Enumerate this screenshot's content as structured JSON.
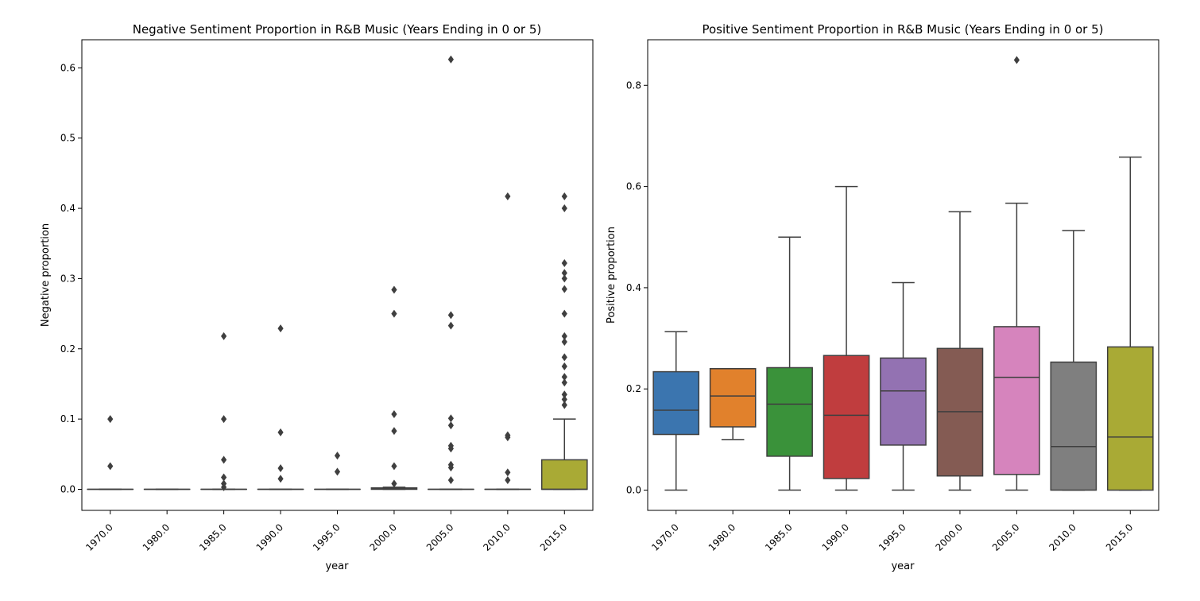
{
  "charts": [
    {
      "type": "box",
      "title": "Negative Sentiment Proportion in R&B Music (Years Ending in 0 or 5)",
      "xlabel": "year",
      "ylabel": "Negative proportion",
      "ylim": [
        -0.03,
        0.64
      ],
      "yticks": [
        0.0,
        0.1,
        0.2,
        0.3,
        0.4,
        0.5,
        0.6
      ],
      "yticklabels": [
        "0.0",
        "0.1",
        "0.2",
        "0.3",
        "0.4",
        "0.5",
        "0.6"
      ],
      "categories": [
        "1970.0",
        "1980.0",
        "1985.0",
        "1990.0",
        "1995.0",
        "2000.0",
        "2005.0",
        "2010.0",
        "2015.0"
      ],
      "boxes": [
        {
          "q1": 0.0,
          "median": 0.0,
          "q3": 0.0,
          "whislo": 0.0,
          "whishi": 0.0,
          "fliers": [
            0.1,
            0.033
          ]
        },
        {
          "q1": 0.0,
          "median": 0.0,
          "q3": 0.0,
          "whislo": 0.0,
          "whishi": 0.0,
          "fliers": []
        },
        {
          "q1": 0.0,
          "median": 0.0,
          "q3": 0.0,
          "whislo": 0.0,
          "whishi": 0.0,
          "fliers": [
            0.218,
            0.1,
            0.042,
            0.017,
            0.008,
            0.003
          ]
        },
        {
          "q1": 0.0,
          "median": 0.0,
          "q3": 0.0,
          "whislo": 0.0,
          "whishi": 0.0,
          "fliers": [
            0.229,
            0.081,
            0.03,
            0.015
          ]
        },
        {
          "q1": 0.0,
          "median": 0.0,
          "q3": 0.0,
          "whislo": 0.0,
          "whishi": 0.0,
          "fliers": [
            0.048,
            0.025
          ]
        },
        {
          "q1": 0.0,
          "median": 0.001,
          "q3": 0.002,
          "whislo": 0.0,
          "whishi": 0.003,
          "fliers": [
            0.284,
            0.25,
            0.107,
            0.083,
            0.033,
            0.008
          ]
        },
        {
          "q1": 0.0,
          "median": 0.0,
          "q3": 0.0,
          "whislo": 0.0,
          "whishi": 0.0,
          "fliers": [
            0.612,
            0.248,
            0.233,
            0.101,
            0.091,
            0.062,
            0.058,
            0.035,
            0.031,
            0.013
          ]
        },
        {
          "q1": 0.0,
          "median": 0.0,
          "q3": 0.0,
          "whislo": 0.0,
          "whishi": 0.0,
          "fliers": [
            0.417,
            0.077,
            0.074,
            0.024,
            0.013
          ]
        },
        {
          "q1": 0.0,
          "median": 0.0,
          "q3": 0.042,
          "whislo": 0.0,
          "whishi": 0.1,
          "fliers": [
            0.417,
            0.4,
            0.322,
            0.308,
            0.3,
            0.285,
            0.25,
            0.218,
            0.21,
            0.188,
            0.175,
            0.16,
            0.152,
            0.135,
            0.128,
            0.12
          ]
        }
      ]
    },
    {
      "type": "box",
      "title": "Positive Sentiment Proportion in R&B Music (Years Ending in 0 or 5)",
      "xlabel": "year",
      "ylabel": "Positive proportion",
      "ylim": [
        -0.04,
        0.89
      ],
      "yticks": [
        0.0,
        0.2,
        0.4,
        0.6,
        0.8
      ],
      "yticklabels": [
        "0.0",
        "0.2",
        "0.4",
        "0.6",
        "0.8"
      ],
      "categories": [
        "1970.0",
        "1980.0",
        "1985.0",
        "1990.0",
        "1995.0",
        "2000.0",
        "2005.0",
        "2010.0",
        "2015.0"
      ],
      "boxes": [
        {
          "q1": 0.11,
          "median": 0.158,
          "q3": 0.234,
          "whislo": 0.0,
          "whishi": 0.313,
          "fliers": []
        },
        {
          "q1": 0.125,
          "median": 0.186,
          "q3": 0.24,
          "whislo": 0.1,
          "whishi": 0.24,
          "fliers": []
        },
        {
          "q1": 0.067,
          "median": 0.17,
          "q3": 0.242,
          "whislo": 0.0,
          "whishi": 0.5,
          "fliers": []
        },
        {
          "q1": 0.023,
          "median": 0.148,
          "q3": 0.266,
          "whislo": 0.0,
          "whishi": 0.6,
          "fliers": []
        },
        {
          "q1": 0.089,
          "median": 0.196,
          "q3": 0.261,
          "whislo": 0.0,
          "whishi": 0.41,
          "fliers": []
        },
        {
          "q1": 0.028,
          "median": 0.155,
          "q3": 0.28,
          "whislo": 0.0,
          "whishi": 0.55,
          "fliers": []
        },
        {
          "q1": 0.031,
          "median": 0.223,
          "q3": 0.323,
          "whislo": 0.0,
          "whishi": 0.567,
          "fliers": [
            0.85
          ]
        },
        {
          "q1": 0.0,
          "median": 0.086,
          "q3": 0.253,
          "whislo": 0.0,
          "whishi": 0.513,
          "fliers": []
        },
        {
          "q1": 0.0,
          "median": 0.105,
          "q3": 0.283,
          "whislo": 0.0,
          "whishi": 0.658,
          "fliers": []
        }
      ]
    }
  ],
  "colors": [
    "#3b75af",
    "#e1812c",
    "#3a923a",
    "#c03d3e",
    "#9372b2",
    "#845b53",
    "#d684bd",
    "#7f7f7f",
    "#a9aa35"
  ],
  "line_color": "#3f3f3f"
}
